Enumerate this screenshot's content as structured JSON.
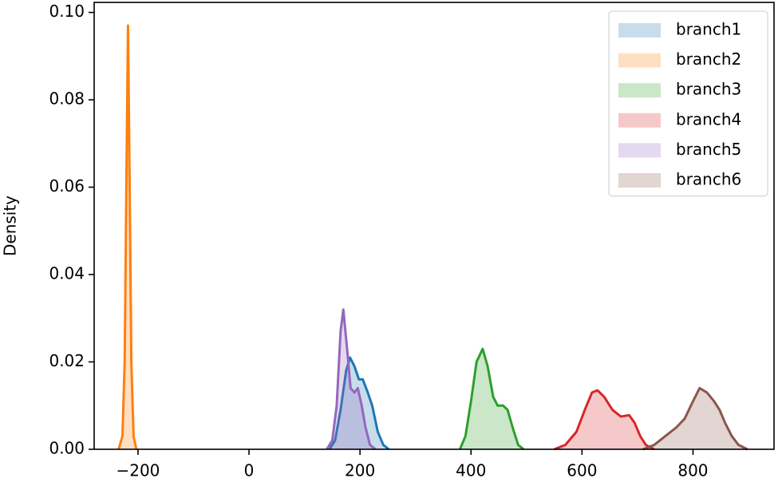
{
  "chart_data": {
    "type": "kde",
    "ylabel": "Density",
    "xlim": [
      -279,
      946
    ],
    "ylim": [
      0,
      0.1023
    ],
    "xticks": [
      {
        "value": -200,
        "label": "−200"
      },
      0,
      200,
      400,
      600,
      800
    ],
    "yticks": [
      {
        "value": 0,
        "label": "0.00"
      },
      {
        "value": 0.02,
        "label": "0.02"
      },
      {
        "value": 0.04,
        "label": "0.04"
      },
      {
        "value": 0.06,
        "label": "0.06"
      },
      {
        "value": 0.08,
        "label": "0.08"
      },
      {
        "value": 0.1,
        "label": "0.10"
      }
    ],
    "legend": "upper right",
    "series": [
      {
        "name": "branch1",
        "color": "#1f77b4",
        "x": [
          145,
          155,
          165,
          175,
          182,
          190,
          198,
          205,
          214,
          222,
          232,
          242,
          252
        ],
        "values": [
          0,
          0.002,
          0.009,
          0.018,
          0.021,
          0.019,
          0.016,
          0.016,
          0.013,
          0.01,
          0.004,
          0.001,
          0
        ]
      },
      {
        "name": "branch2",
        "color": "#ff7f0e",
        "x": [
          -235,
          -228,
          -224,
          -221,
          -218,
          -215,
          -212,
          -208,
          -203
        ],
        "values": [
          0,
          0.003,
          0.02,
          0.06,
          0.097,
          0.06,
          0.02,
          0.003,
          0
        ]
      },
      {
        "name": "branch3",
        "color": "#2ca02c",
        "x": [
          380,
          390,
          400,
          410,
          421,
          430,
          440,
          448,
          458,
          466,
          475,
          485,
          495
        ],
        "values": [
          0,
          0.003,
          0.011,
          0.02,
          0.023,
          0.019,
          0.012,
          0.01,
          0.01,
          0.009,
          0.005,
          0.001,
          0
        ]
      },
      {
        "name": "branch4",
        "color": "#d62728",
        "x": [
          550,
          570,
          590,
          605,
          618,
          628,
          640,
          655,
          670,
          685,
          695,
          705,
          715,
          730
        ],
        "values": [
          0,
          0.001,
          0.004,
          0.009,
          0.013,
          0.0135,
          0.012,
          0.009,
          0.0075,
          0.0078,
          0.006,
          0.003,
          0.001,
          0
        ]
      },
      {
        "name": "branch5",
        "color": "#9467bd",
        "x": [
          140,
          150,
          158,
          165,
          170,
          176,
          183,
          190,
          196,
          203,
          210,
          218,
          228
        ],
        "values": [
          0,
          0.002,
          0.01,
          0.027,
          0.032,
          0.024,
          0.014,
          0.013,
          0.014,
          0.01,
          0.005,
          0.001,
          0
        ]
      },
      {
        "name": "branch6",
        "color": "#8c564b",
        "x": [
          710,
          730,
          750,
          770,
          785,
          800,
          812,
          825,
          838,
          848,
          858,
          870,
          882,
          898
        ],
        "values": [
          0,
          0.001,
          0.003,
          0.005,
          0.007,
          0.011,
          0.014,
          0.013,
          0.011,
          0.009,
          0.006,
          0.003,
          0.001,
          0
        ]
      }
    ]
  }
}
